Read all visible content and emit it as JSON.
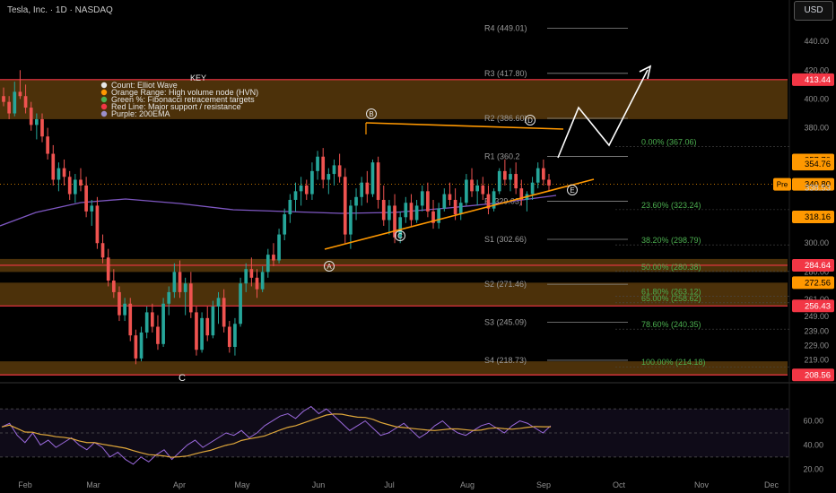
{
  "header": {
    "symbol": "Tesla, Inc. · 1D · NASDAQ",
    "currency": "USD"
  },
  "key": {
    "title": "KEY",
    "items": [
      {
        "label": "Count: Elliot Wave",
        "color": "#e6e6e6"
      },
      {
        "label": "Orange Range: High volume node (HVN)",
        "color": "#ff9800"
      },
      {
        "label": "Green %: Fibonacci retracement targets",
        "color": "#4caf50"
      },
      {
        "label": "Red Line: Major support / resistance",
        "color": "#f23645"
      },
      {
        "label": "Purple: 200EMA",
        "color": "#9c8fc9"
      }
    ]
  },
  "colors": {
    "up": "#26a69a",
    "down": "#ef5350",
    "hvn": "#8a5a12",
    "support": "#f23645",
    "ema": "#7e57c2",
    "fib": "#4caf50",
    "trend": "#ff9800",
    "rsi": "#9c6ade",
    "rsi_ma": "#e0a83a"
  },
  "chart_data": {
    "type": "candlestick",
    "price_axis": {
      "ticks": [
        "440.00",
        "420.00",
        "400.00",
        "380.00",
        "360.00",
        "320.00",
        "300.00",
        "280.00",
        "261.00",
        "249.00",
        "239.00",
        "229.00",
        "219.00"
      ],
      "ylim": [
        205,
        455
      ]
    },
    "x_labels": [
      "Feb",
      "Mar",
      "Apr",
      "May",
      "Jun",
      "Jul",
      "Aug",
      "Sep",
      "Oct",
      "Nov",
      "Dec"
    ],
    "support_lines": [
      413.44,
      284.64,
      256.43,
      208.56
    ],
    "price_badges": [
      {
        "label": "413.44",
        "kind": "support"
      },
      {
        "label": "357.70",
        "kind": "orange"
      },
      {
        "label": "354.76",
        "kind": "orange"
      },
      {
        "label": "340.80",
        "kind": "orange",
        "tag": "Pre"
      },
      {
        "label": "338.53",
        "kind": "plain"
      },
      {
        "label": "318.16",
        "kind": "orange"
      },
      {
        "label": "284.64",
        "kind": "support"
      },
      {
        "label": "272.56",
        "kind": "orange"
      },
      {
        "label": "256.43",
        "kind": "support"
      },
      {
        "label": "208.56",
        "kind": "support"
      }
    ],
    "hvn_zones": [
      [
        386,
        413.44
      ],
      [
        280,
        289
      ],
      [
        256.43,
        272.56
      ],
      [
        208.56,
        218
      ]
    ],
    "pivots": [
      {
        "label": "R4 (449.01)",
        "value": 449.01
      },
      {
        "label": "R3 (417.80)",
        "value": 417.8
      },
      {
        "label": "R2 (386.60)",
        "value": 386.6
      },
      {
        "label": "R1 (360.2",
        "value": 360.2
      },
      {
        "label": "P (329.03)",
        "value": 329.03
      },
      {
        "label": "S1 (302.66)",
        "value": 302.66
      },
      {
        "label": "S2 (271.46)",
        "value": 271.46
      },
      {
        "label": "S3 (245.09)",
        "value": 245.09
      },
      {
        "label": "S4 (218.73)",
        "value": 218.73
      }
    ],
    "fibs": [
      {
        "label": "0.00% (367.06)",
        "value": 367.06
      },
      {
        "label": "23.60% (323.24)",
        "value": 323.24
      },
      {
        "label": "38.20% (298.79)",
        "value": 298.79
      },
      {
        "label": "50.00% (280.38)",
        "value": 280.38
      },
      {
        "label": "61.80% (263.12)",
        "value": 263.12
      },
      {
        "label": "65.00% (258.62)",
        "value": 258.62
      },
      {
        "label": "78.60% (240.35)",
        "value": 240.35
      },
      {
        "label": "100.00% (214.18)",
        "value": 214.18
      }
    ],
    "wave_labels": [
      "A",
      "B",
      "C",
      "D",
      "E",
      "C"
    ],
    "rsi_axis": {
      "ticks": [
        "60.00",
        "40.00",
        "20.00"
      ],
      "ylim": [
        15,
        85
      ]
    },
    "candles": [
      [
        402,
        408,
        395,
        398
      ],
      [
        398,
        402,
        386,
        390
      ],
      [
        390,
        412,
        388,
        405
      ],
      [
        405,
        420,
        400,
        402
      ],
      [
        402,
        410,
        390,
        394
      ],
      [
        394,
        398,
        378,
        382
      ],
      [
        382,
        390,
        372,
        386
      ],
      [
        386,
        390,
        370,
        374
      ],
      [
        374,
        380,
        358,
        362
      ],
      [
        362,
        368,
        340,
        344
      ],
      [
        344,
        356,
        336,
        352
      ],
      [
        352,
        358,
        340,
        346
      ],
      [
        346,
        350,
        330,
        334
      ],
      [
        334,
        348,
        328,
        344
      ],
      [
        344,
        352,
        336,
        340
      ],
      [
        340,
        346,
        318,
        322
      ],
      [
        322,
        330,
        312,
        326
      ],
      [
        326,
        332,
        296,
        300
      ],
      [
        300,
        306,
        286,
        290
      ],
      [
        290,
        296,
        270,
        274
      ],
      [
        274,
        282,
        262,
        266
      ],
      [
        266,
        270,
        246,
        250
      ],
      [
        250,
        262,
        246,
        258
      ],
      [
        258,
        262,
        232,
        236
      ],
      [
        236,
        240,
        216,
        220
      ],
      [
        220,
        242,
        218,
        238
      ],
      [
        238,
        256,
        234,
        252
      ],
      [
        252,
        258,
        238,
        242
      ],
      [
        242,
        250,
        226,
        230
      ],
      [
        230,
        262,
        228,
        258
      ],
      [
        258,
        270,
        250,
        266
      ],
      [
        266,
        286,
        262,
        280
      ],
      [
        280,
        288,
        262,
        266
      ],
      [
        266,
        276,
        250,
        272
      ],
      [
        272,
        280,
        248,
        252
      ],
      [
        252,
        256,
        222,
        226
      ],
      [
        226,
        252,
        224,
        248
      ],
      [
        248,
        256,
        232,
        236
      ],
      [
        236,
        260,
        234,
        256
      ],
      [
        256,
        266,
        244,
        262
      ],
      [
        262,
        268,
        238,
        242
      ],
      [
        242,
        246,
        224,
        228
      ],
      [
        228,
        248,
        222,
        244
      ],
      [
        244,
        276,
        242,
        272
      ],
      [
        272,
        286,
        266,
        282
      ],
      [
        282,
        290,
        270,
        276
      ],
      [
        276,
        282,
        262,
        268
      ],
      [
        268,
        284,
        266,
        280
      ],
      [
        280,
        296,
        276,
        292
      ],
      [
        292,
        300,
        284,
        288
      ],
      [
        288,
        310,
        286,
        306
      ],
      [
        306,
        324,
        302,
        320
      ],
      [
        320,
        334,
        314,
        330
      ],
      [
        330,
        342,
        322,
        336
      ],
      [
        336,
        346,
        326,
        340
      ],
      [
        340,
        344,
        330,
        334
      ],
      [
        334,
        356,
        330,
        350
      ],
      [
        350,
        364,
        344,
        360
      ],
      [
        360,
        366,
        338,
        344
      ],
      [
        344,
        352,
        334,
        348
      ],
      [
        348,
        358,
        340,
        354
      ],
      [
        354,
        362,
        342,
        346
      ],
      [
        346,
        352,
        300,
        306
      ],
      [
        306,
        330,
        296,
        326
      ],
      [
        326,
        338,
        316,
        332
      ],
      [
        332,
        346,
        326,
        342
      ],
      [
        342,
        350,
        328,
        334
      ],
      [
        334,
        358,
        332,
        356
      ],
      [
        356,
        360,
        324,
        330
      ],
      [
        330,
        340,
        312,
        316
      ],
      [
        316,
        330,
        306,
        326
      ],
      [
        326,
        334,
        300,
        304
      ],
      [
        304,
        322,
        300,
        318
      ],
      [
        318,
        332,
        314,
        328
      ],
      [
        328,
        334,
        312,
        316
      ],
      [
        316,
        330,
        314,
        326
      ],
      [
        326,
        340,
        322,
        336
      ],
      [
        336,
        342,
        318,
        322
      ],
      [
        322,
        330,
        310,
        314
      ],
      [
        314,
        328,
        310,
        324
      ],
      [
        324,
        338,
        322,
        334
      ],
      [
        334,
        342,
        326,
        330
      ],
      [
        330,
        338,
        316,
        320
      ],
      [
        320,
        332,
        316,
        328
      ],
      [
        328,
        348,
        326,
        344
      ],
      [
        344,
        352,
        332,
        336
      ],
      [
        336,
        344,
        326,
        340
      ],
      [
        340,
        346,
        330,
        334
      ],
      [
        334,
        340,
        320,
        324
      ],
      [
        324,
        338,
        322,
        336
      ],
      [
        336,
        352,
        334,
        350
      ],
      [
        350,
        358,
        340,
        344
      ],
      [
        344,
        352,
        336,
        348
      ],
      [
        348,
        356,
        334,
        338
      ],
      [
        338,
        344,
        326,
        330
      ],
      [
        330,
        336,
        322,
        334
      ],
      [
        334,
        346,
        330,
        342
      ],
      [
        342,
        356,
        338,
        352
      ],
      [
        352,
        358,
        340,
        344
      ],
      [
        344,
        348,
        336,
        340
      ]
    ]
  }
}
